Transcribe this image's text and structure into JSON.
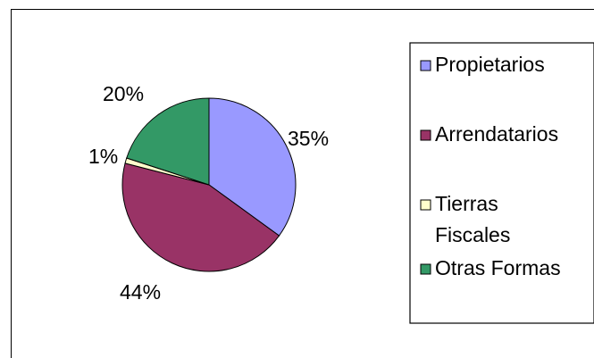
{
  "chart_data": {
    "type": "pie",
    "title": "",
    "slices": [
      {
        "label": "Propietarios",
        "value": 35,
        "value_label": "35%",
        "color": "#9999ff"
      },
      {
        "label": "Arrendatarios",
        "value": 44,
        "value_label": "44%",
        "color": "#993366"
      },
      {
        "label": "Tierras Fiscales",
        "value": 1,
        "value_label": "1%",
        "color": "#ffffcc"
      },
      {
        "label": "Otras Formas",
        "value": 20,
        "value_label": "20%",
        "color": "#339966"
      }
    ],
    "legend_position": "right",
    "legend_entries": [
      {
        "lines": [
          "Propietarios"
        ],
        "color": "#9999ff"
      },
      {
        "lines": [
          "Arrendatarios"
        ],
        "color": "#993366"
      },
      {
        "lines": [
          "Tierras",
          "Fiscales"
        ],
        "color": "#ffffcc"
      },
      {
        "lines": [
          "Otras Formas"
        ],
        "color": "#339966"
      }
    ]
  }
}
